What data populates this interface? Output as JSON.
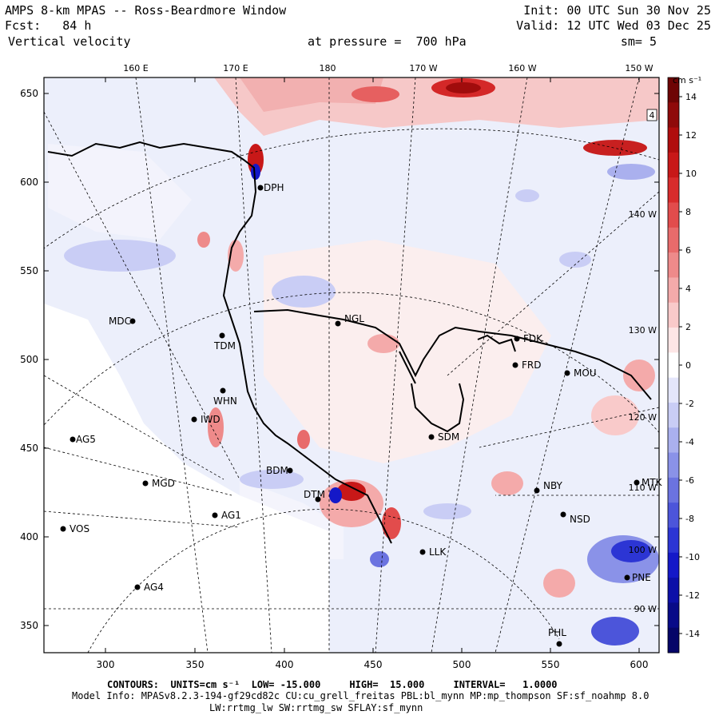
{
  "header": {
    "title": "AMPS 8-km MPAS -- Ross-Beardmore Window",
    "fcst_label": "Fcst:",
    "fcst_value": "84 h",
    "variable": "Vertical velocity",
    "init": "Init: 00 UTC Sun 30 Nov 25",
    "valid": "Valid: 12 UTC Wed 03 Dec 25",
    "pressure_label": "at pressure =  700 hPa",
    "smooth": "sm= 5"
  },
  "axes": {
    "x_ticks": [
      "300",
      "350",
      "400",
      "450",
      "500",
      "550",
      "600"
    ],
    "y_ticks": [
      "650",
      "600",
      "550",
      "500",
      "450",
      "400",
      "350"
    ],
    "top_lon_labels": [
      "160 E",
      "170 E",
      "180",
      "170 W",
      "160 W",
      "150 W"
    ],
    "right_lon_labels": [
      "140 W",
      "130 W",
      "120 W",
      "110 W",
      "100 W",
      "90 W"
    ]
  },
  "stations": [
    {
      "name": "MDC"
    },
    {
      "name": "TDM"
    },
    {
      "name": "NGL"
    },
    {
      "name": "FDK"
    },
    {
      "name": "FRD"
    },
    {
      "name": "MOU"
    },
    {
      "name": "WHN"
    },
    {
      "name": "IWD"
    },
    {
      "name": "AG5"
    },
    {
      "name": "SDM"
    },
    {
      "name": "BDM"
    },
    {
      "name": "MGD"
    },
    {
      "name": "NBY"
    },
    {
      "name": "MTK"
    },
    {
      "name": "AG1"
    },
    {
      "name": "NSD"
    },
    {
      "name": "VOS"
    },
    {
      "name": "LLK"
    },
    {
      "name": "PNE"
    },
    {
      "name": "AG4"
    },
    {
      "name": "PHL"
    },
    {
      "name": "DPH"
    },
    {
      "name": "DTM"
    }
  ],
  "colorbar": {
    "units": "cm s⁻¹",
    "ticks": [
      "14",
      "12",
      "10",
      "8",
      "6",
      "4",
      "2",
      "0",
      "-2",
      "-4",
      "-6",
      "-8",
      "-10",
      "-12",
      "-14"
    ],
    "colors_pos": [
      "#fde6e6",
      "#f9caca",
      "#f4aaaa",
      "#ee8a8a",
      "#e86b6b",
      "#e24c4c",
      "#d82c2c",
      "#c81818",
      "#b00d0d",
      "#8f0a0a",
      "#6e0505"
    ],
    "colors_neg": [
      "#e4e6fb",
      "#c9cdf5",
      "#aab0ee",
      "#8a92e8",
      "#6b73e0",
      "#4c55da",
      "#2c35d4",
      "#1418c8",
      "#0c0fa8",
      "#080a88",
      "#050568"
    ],
    "box_label": "4"
  },
  "footer": {
    "contours": "CONTOURS:  UNITS=cm s⁻¹  LOW= -15.000     HIGH=  15.000     INTERVAL=   1.0000",
    "model_info": "Model Info: MPASv8.2.3-194-gf29cd82c CU:cu_grell_freitas PBL:bl_mynn MP:mp_thompson SF:sf_noahmp 8.0",
    "model_info2": "LW:rrtmg_lw SW:rrtmg_sw SFLAY:sf_mynn"
  }
}
